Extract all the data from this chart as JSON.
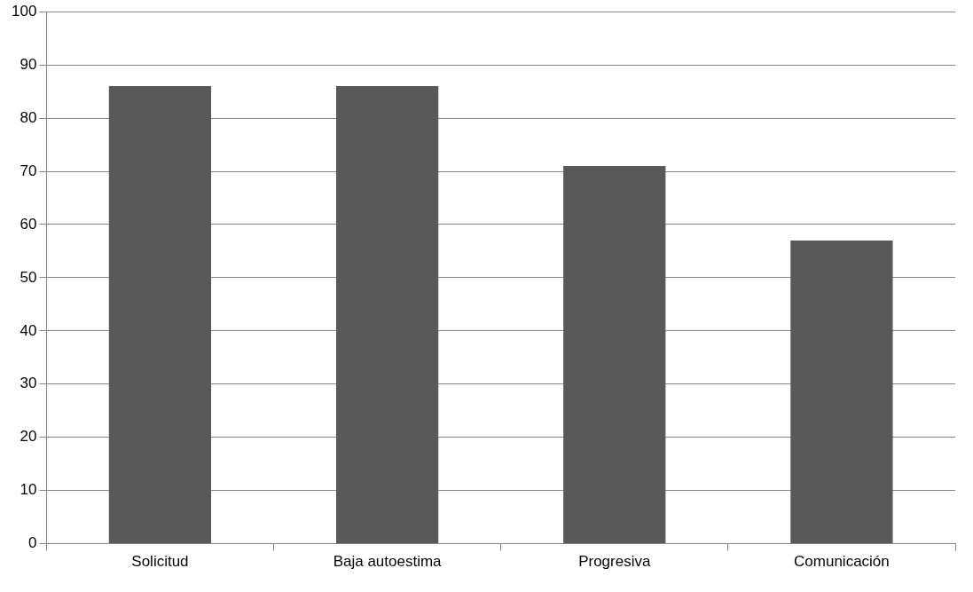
{
  "chart_data": {
    "type": "bar",
    "categories": [
      "Solicitud",
      "Baja autoestima",
      "Progresiva",
      "Comunicación"
    ],
    "values": [
      86,
      86,
      71,
      57
    ],
    "color": "#595959",
    "ylim": [
      0,
      100
    ],
    "yticks": [
      0,
      10,
      20,
      30,
      40,
      50,
      60,
      70,
      80,
      90,
      100
    ],
    "grid": "y",
    "legend": false
  }
}
